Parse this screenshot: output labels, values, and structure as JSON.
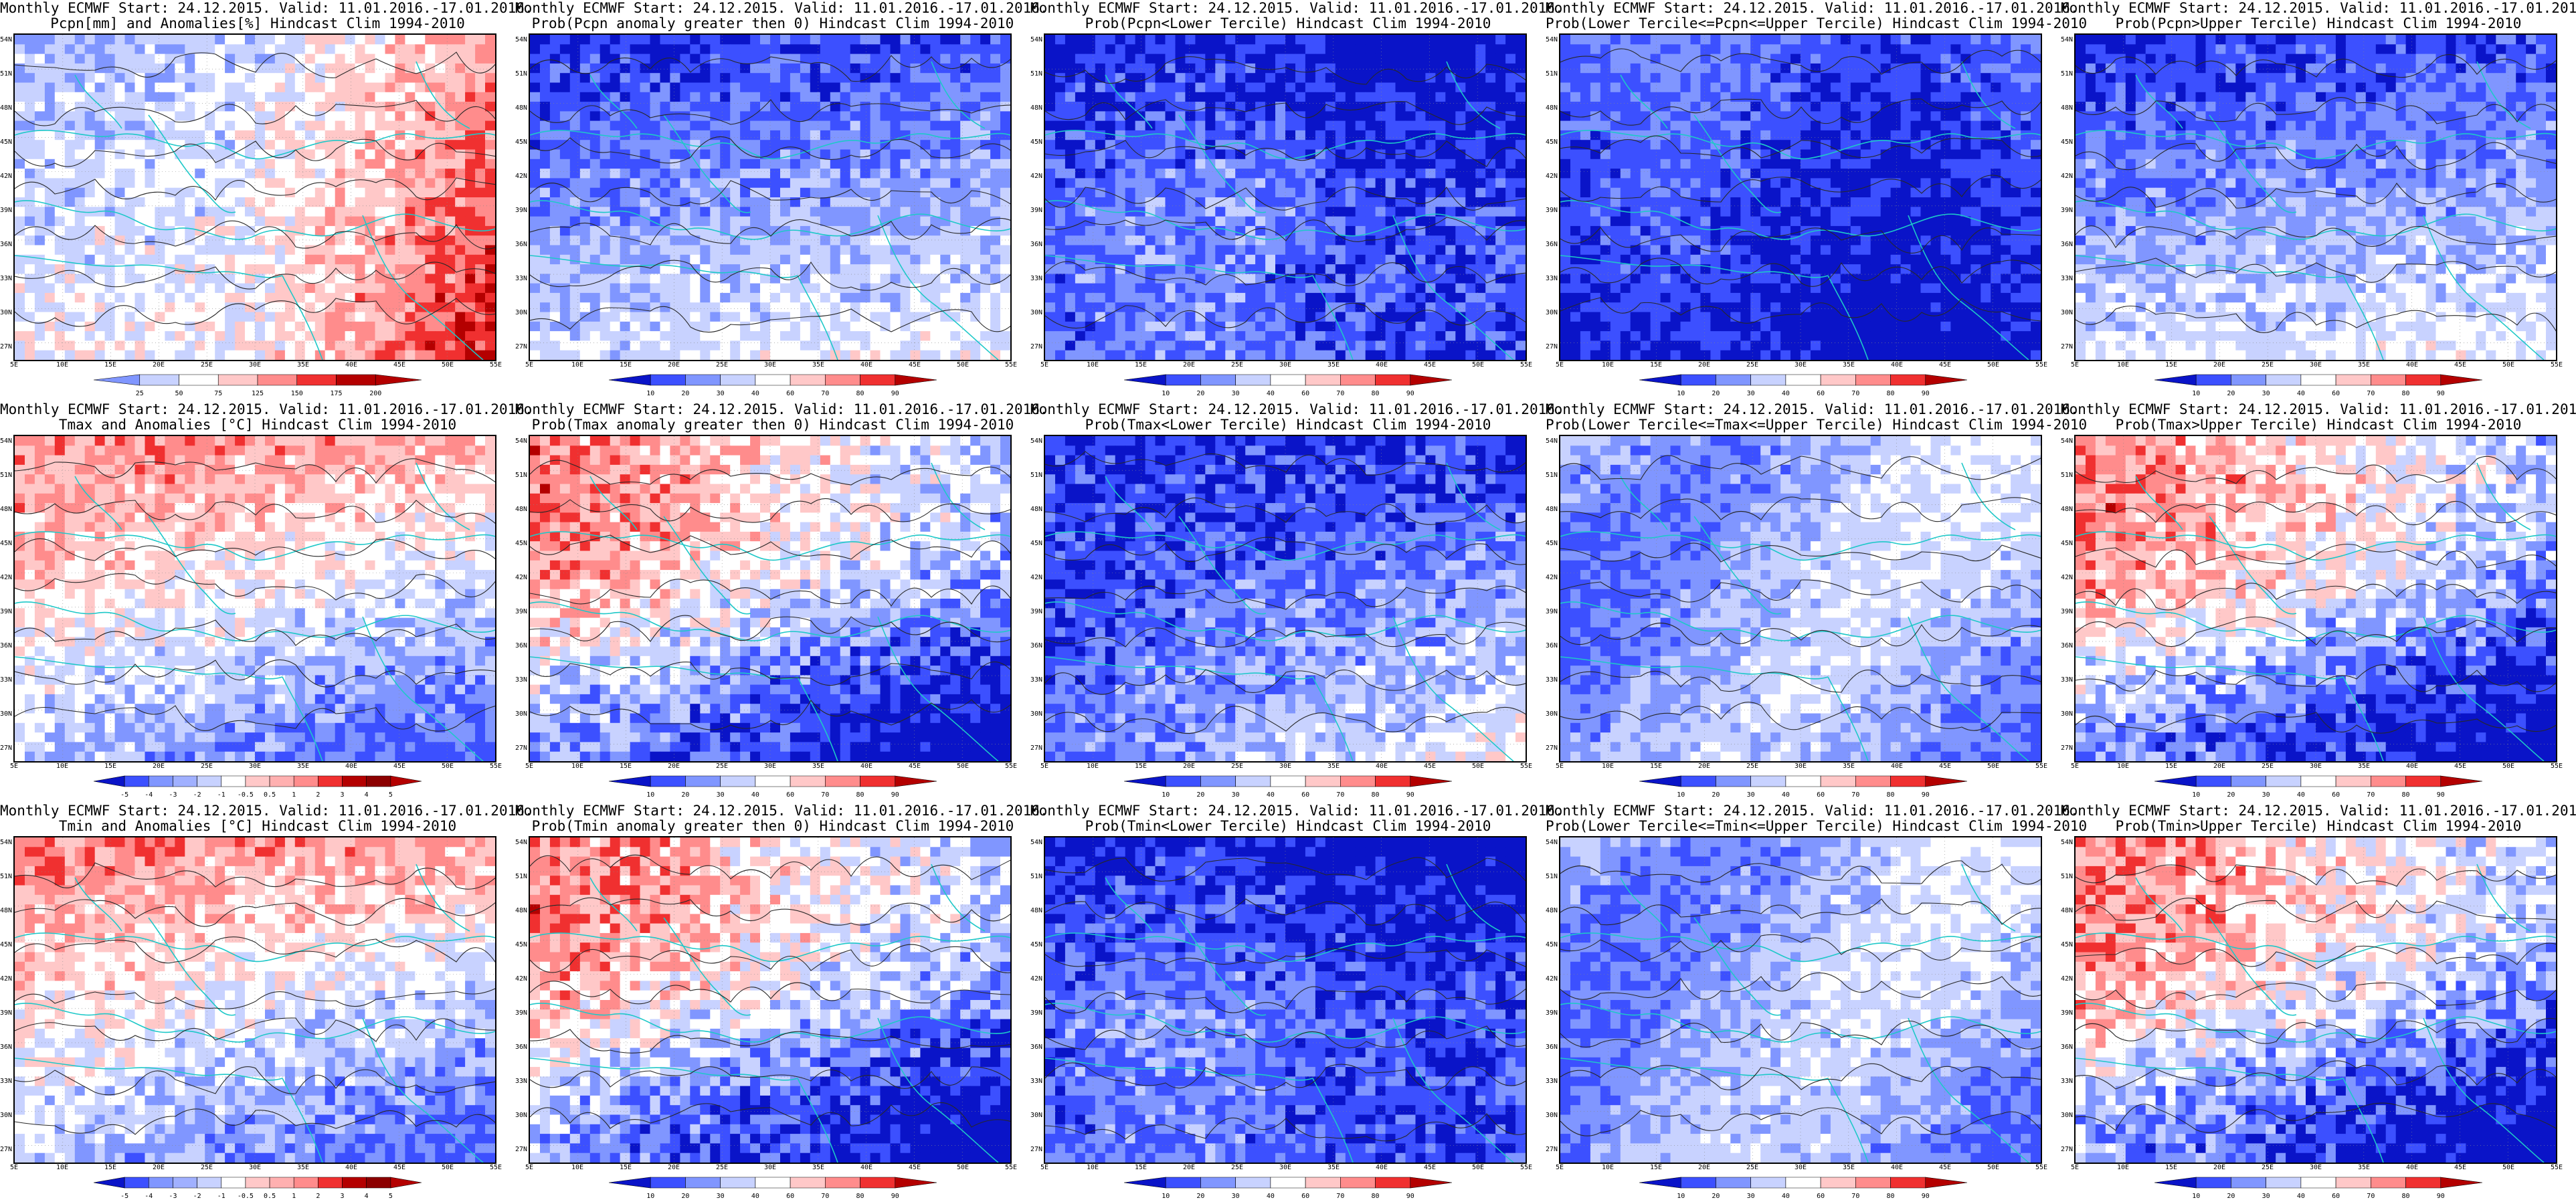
{
  "common": {
    "title_line1": "Monthly ECMWF Start: 24.12.2015. Valid: 11.01.2016.-17.01.2016.",
    "lat_labels": [
      "54N",
      "51N",
      "48N",
      "45N",
      "42N",
      "39N",
      "36N",
      "33N",
      "30N",
      "27N"
    ],
    "lon_labels": [
      "5E",
      "10E",
      "15E",
      "20E",
      "25E",
      "30E",
      "35E",
      "40E",
      "45E",
      "50E",
      "55E"
    ],
    "prob_levels": [
      "10",
      "20",
      "30",
      "40",
      "60",
      "70",
      "80",
      "90"
    ],
    "colors": {
      "blue_dark": "#0a14c8",
      "blue": "#3c50ff",
      "blue_mid": "#8096ff",
      "blue_light": "#c8d2ff",
      "white": "#ffffff",
      "red_light": "#ffc8c8",
      "red_mid": "#ff8c8c",
      "red": "#f03030",
      "red_dark": "#b40000",
      "coast": "#1ec8c8",
      "contour": "#282828"
    }
  },
  "panels": [
    {
      "id": "pcpn-anom",
      "title2": "Pcpn[mm] and Anomalies[%] Hindcast Clim 1994-2010",
      "scale": "anom",
      "theme": "red_se",
      "levels": [
        "25",
        "50",
        "75",
        "125",
        "150",
        "175",
        "200"
      ]
    },
    {
      "id": "pcpn-prob-gt0",
      "title2": "Prob(Pcpn anomaly greater then 0) Hindcast Clim 1994-2010",
      "scale": "prob",
      "theme": "blue_n"
    },
    {
      "id": "pcpn-prob-lower",
      "title2": "Prob(Pcpn<Lower Tercile) Hindcast Clim 1994-2010",
      "scale": "prob",
      "theme": "blue_heavy"
    },
    {
      "id": "pcpn-prob-middle",
      "title2": "Prob(Lower Tercile<=Pcpn<=Upper Tercile) Hindcast Clim 1994-2010",
      "scale": "prob",
      "theme": "blue_heavy_s"
    },
    {
      "id": "pcpn-prob-upper",
      "title2": "Prob(Pcpn>Upper Tercile) Hindcast Clim 1994-2010",
      "scale": "prob",
      "theme": "blue_n"
    },
    {
      "id": "tmax-anom",
      "title2": "Tmax and Anomalies [°C] Hindcast Clim 1994-2010",
      "scale": "anom",
      "theme": "red_n_blue_se",
      "levels": [
        "-5",
        "-4",
        "-3",
        "-2",
        "-1",
        "-0.5",
        "0.5",
        "1",
        "2",
        "3",
        "4",
        "5"
      ]
    },
    {
      "id": "tmax-prob-gt0",
      "title2": "Prob(Tmax anomaly greater then 0) Hindcast Clim 1994-2010",
      "scale": "prob",
      "theme": "red_nw_blue_se"
    },
    {
      "id": "tmax-prob-lower",
      "title2": "Prob(Tmax<Lower Tercile) Hindcast Clim 1994-2010",
      "scale": "prob",
      "theme": "blue_n_red_s"
    },
    {
      "id": "tmax-prob-middle",
      "title2": "Prob(Lower Tercile<=Tmax<=Upper Tercile) Hindcast Clim 1994-2010",
      "scale": "prob",
      "theme": "blue_mixed"
    },
    {
      "id": "tmax-prob-upper",
      "title2": "Prob(Tmax>Upper Tercile) Hindcast Clim 1994-2010",
      "scale": "prob",
      "theme": "red_nw_blue_se"
    },
    {
      "id": "tmin-anom",
      "title2": "Tmin and Anomalies [°C] Hindcast Clim 1994-2010",
      "scale": "anom",
      "theme": "red_n_blue_se",
      "levels": [
        "-5",
        "-4",
        "-3",
        "-2",
        "-1",
        "-0.5",
        "0.5",
        "1",
        "2",
        "3",
        "4",
        "5"
      ]
    },
    {
      "id": "tmin-prob-gt0",
      "title2": "Prob(Tmin anomaly greater then 0) Hindcast Clim 1994-2010",
      "scale": "prob",
      "theme": "red_nw_blue_se"
    },
    {
      "id": "tmin-prob-lower",
      "title2": "Prob(Tmin<Lower Tercile) Hindcast Clim 1994-2010",
      "scale": "prob",
      "theme": "blue_heavy"
    },
    {
      "id": "tmin-prob-middle",
      "title2": "Prob(Lower Tercile<=Tmin<=Upper Tercile) Hindcast Clim 1994-2010",
      "scale": "prob",
      "theme": "blue_mixed"
    },
    {
      "id": "tmin-prob-upper",
      "title2": "Prob(Tmin>Upper Tercile) Hindcast Clim 1994-2010",
      "scale": "prob",
      "theme": "red_nw_blue_se"
    }
  ]
}
